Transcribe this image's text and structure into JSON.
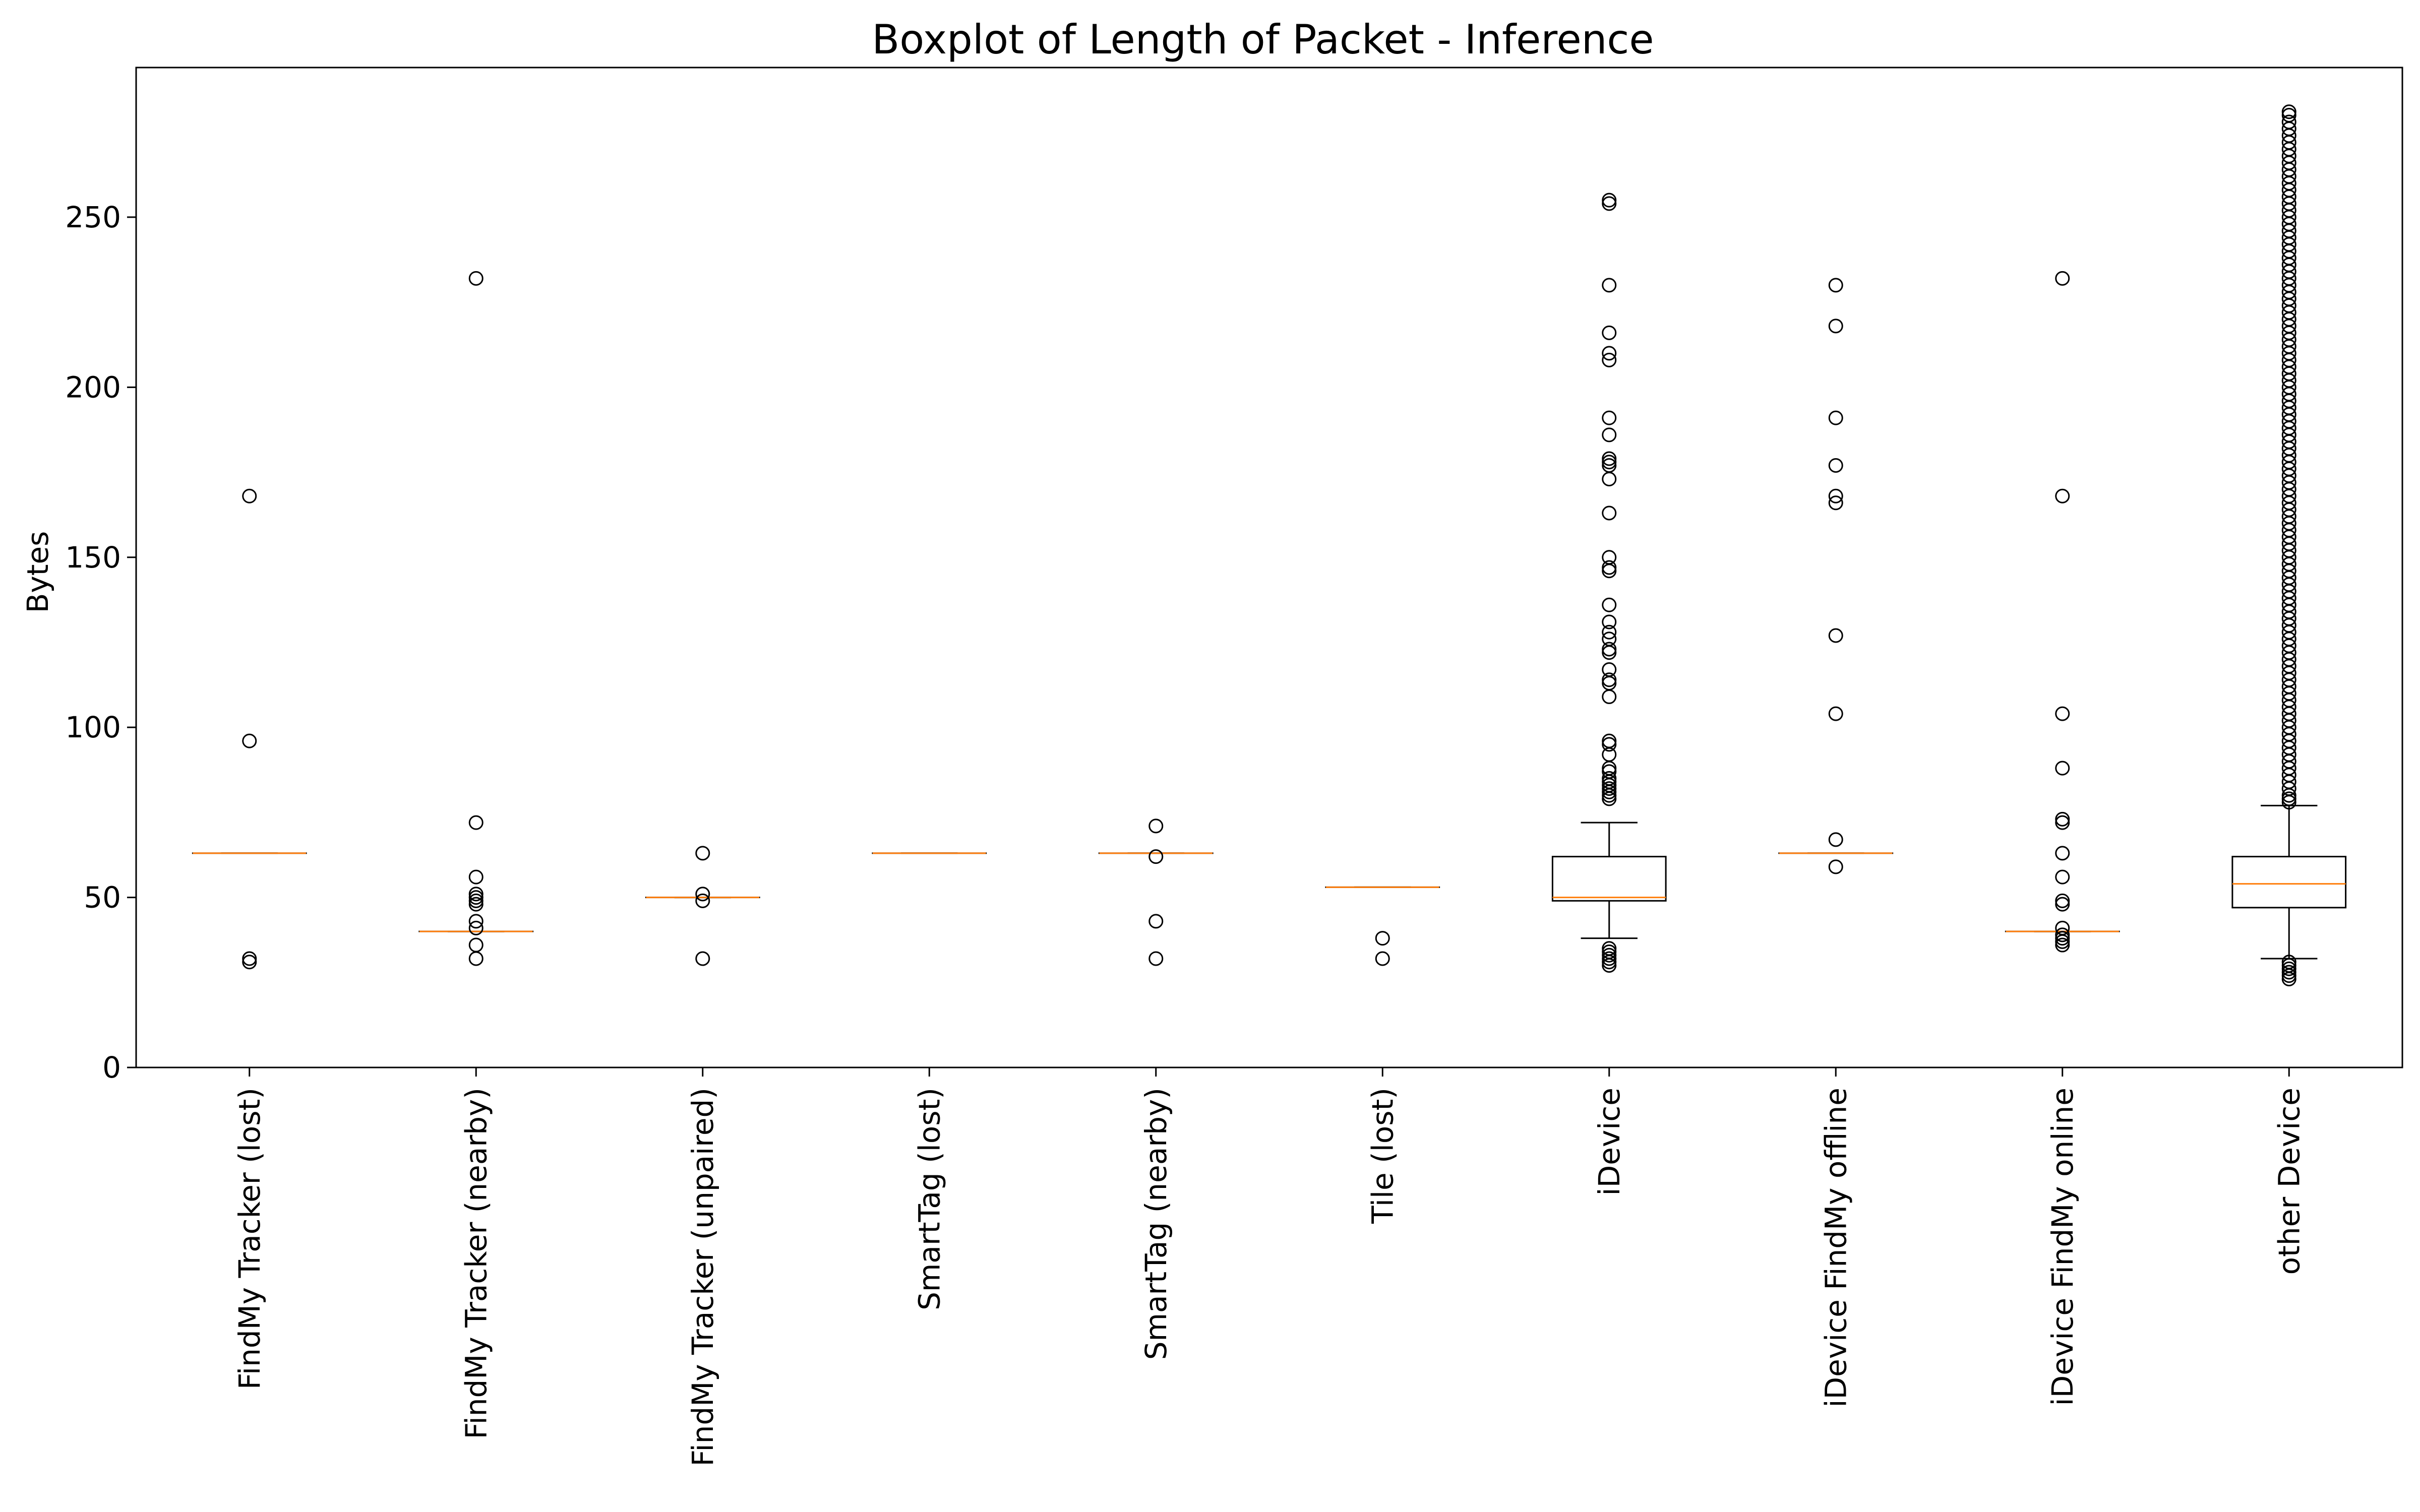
{
  "chart_data": {
    "type": "boxplot",
    "title": "Boxplot of Length of Packet - Inference",
    "xlabel": "",
    "ylabel": "Bytes",
    "ylim": [
      0,
      294
    ],
    "yticks": [
      0,
      50,
      100,
      150,
      200,
      250
    ],
    "grid": false,
    "legend": "none",
    "colors": {
      "box": "#000000",
      "median": "#ff7f0e",
      "frame": "#000000"
    },
    "categories": [
      "FindMy Tracker (lost)",
      "FindMy Tracker (nearby)",
      "FindMy Tracker (unpaired)",
      "SmartTag (lost)",
      "SmartTag (nearby)",
      "Tile (lost)",
      "iDevice",
      "iDevice FindMy offline",
      "iDevice FindMy online",
      "other Device"
    ],
    "boxes": [
      {
        "whislo": 63,
        "q1": 63,
        "med": 63,
        "q3": 63,
        "whishi": 63,
        "fliers": [
          168,
          96,
          32,
          31
        ]
      },
      {
        "whislo": 40,
        "q1": 40,
        "med": 40,
        "q3": 40,
        "whishi": 40,
        "fliers": [
          232,
          72,
          56,
          51,
          50,
          49,
          48,
          43,
          41,
          36,
          32
        ]
      },
      {
        "whislo": 50,
        "q1": 50,
        "med": 50,
        "q3": 50,
        "whishi": 50,
        "fliers": [
          63,
          51,
          49,
          32
        ]
      },
      {
        "whislo": 63,
        "q1": 63,
        "med": 63,
        "q3": 63,
        "whishi": 63,
        "fliers": []
      },
      {
        "whislo": 63,
        "q1": 63,
        "med": 63,
        "q3": 63,
        "whishi": 63,
        "fliers": [
          71,
          62,
          43,
          32
        ]
      },
      {
        "whislo": 53,
        "q1": 53,
        "med": 53,
        "q3": 53,
        "whishi": 53,
        "fliers": [
          38,
          32
        ]
      },
      {
        "whislo": 38,
        "q1": 49,
        "med": 50,
        "q3": 62,
        "whishi": 72,
        "fliers": [
          255,
          254,
          230,
          216,
          210,
          208,
          191,
          186,
          179,
          178,
          177,
          173,
          163,
          150,
          147,
          146,
          136,
          131,
          128,
          126,
          123,
          122,
          117,
          114,
          113,
          109,
          96,
          95,
          92,
          88,
          87,
          85,
          84,
          83,
          82,
          81,
          80,
          79,
          35,
          34,
          33,
          32,
          31,
          30
        ]
      },
      {
        "whislo": 63,
        "q1": 63,
        "med": 63,
        "q3": 63,
        "whishi": 63,
        "fliers": [
          230,
          218,
          191,
          177,
          168,
          166,
          127,
          104,
          67,
          59
        ]
      },
      {
        "whislo": 40,
        "q1": 40,
        "med": 40,
        "q3": 40,
        "whishi": 40,
        "fliers": [
          232,
          168,
          104,
          88,
          73,
          72,
          63,
          56,
          49,
          48,
          41,
          39,
          38,
          37,
          36
        ]
      },
      {
        "whislo": 32,
        "q1": 47,
        "med": 54,
        "q3": 62,
        "whishi": 77,
        "fliers": [
          281,
          280,
          278,
          276,
          274,
          272,
          270,
          268,
          266,
          264,
          262,
          260,
          258,
          256,
          254,
          252,
          250,
          248,
          246,
          244,
          242,
          240,
          238,
          236,
          234,
          232,
          230,
          228,
          226,
          224,
          222,
          220,
          218,
          216,
          214,
          212,
          210,
          208,
          206,
          204,
          202,
          200,
          198,
          196,
          194,
          192,
          190,
          188,
          186,
          184,
          182,
          180,
          178,
          176,
          174,
          172,
          170,
          168,
          166,
          164,
          162,
          160,
          158,
          156,
          154,
          152,
          150,
          148,
          146,
          144,
          142,
          140,
          138,
          136,
          134,
          132,
          130,
          128,
          126,
          124,
          122,
          120,
          118,
          116,
          114,
          112,
          110,
          108,
          106,
          104,
          102,
          100,
          98,
          96,
          94,
          92,
          90,
          88,
          86,
          84,
          82,
          80,
          79,
          78,
          31,
          30,
          29,
          28,
          27,
          26
        ]
      }
    ]
  }
}
